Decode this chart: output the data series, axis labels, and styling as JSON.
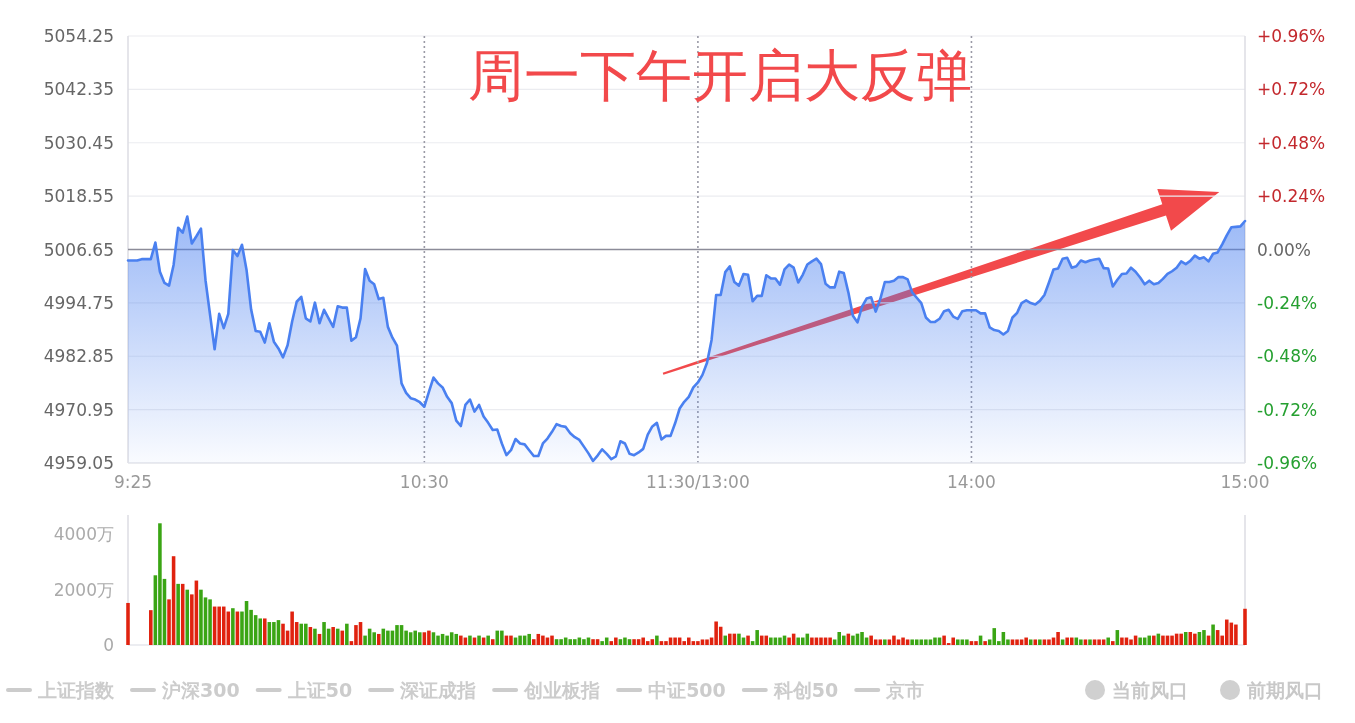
{
  "chart_data": [
    {
      "type": "area",
      "title": "周一下午开启大反弹",
      "categories": [
        "9:25",
        null,
        null,
        null,
        null,
        null,
        null,
        null,
        null,
        null,
        null,
        null,
        null,
        null,
        null,
        null,
        null,
        null,
        null,
        null,
        null,
        null,
        null,
        null,
        null,
        null,
        null,
        null,
        null,
        null,
        null,
        null,
        null,
        null,
        null,
        null,
        null,
        null,
        null,
        null,
        null,
        null,
        null,
        null,
        null,
        null,
        null,
        null,
        null,
        null,
        null,
        null,
        null,
        null,
        null,
        null,
        null,
        null,
        null,
        null,
        null,
        null,
        null,
        null,
        null,
        "10:30",
        null,
        null,
        null,
        null,
        null,
        null,
        null,
        null,
        null,
        null,
        null,
        null,
        null,
        null,
        null,
        null,
        null,
        null,
        null,
        null,
        null,
        null,
        null,
        null,
        null,
        null,
        null,
        null,
        null,
        null,
        null,
        null,
        null,
        null,
        null,
        null,
        null,
        null,
        null,
        null,
        null,
        null,
        null,
        null,
        null,
        null,
        null,
        null,
        null,
        null,
        null,
        null,
        null,
        null,
        null,
        null,
        null,
        null,
        null,
        "11:30/13:00",
        null,
        null,
        null,
        null,
        null,
        null,
        null,
        null,
        null,
        null,
        null,
        null,
        null,
        null,
        null,
        null,
        null,
        null,
        null,
        null,
        null,
        null,
        null,
        null,
        null,
        null,
        null,
        null,
        null,
        null,
        null,
        null,
        null,
        null,
        null,
        null,
        null,
        null,
        null,
        null,
        null,
        null,
        null,
        null,
        null,
        null,
        null,
        null,
        null,
        null,
        null,
        null,
        null,
        null,
        null,
        null,
        null,
        null,
        null,
        "14:00",
        null,
        null,
        null,
        null,
        null,
        null,
        null,
        null,
        null,
        null,
        null,
        null,
        null,
        null,
        null,
        null,
        null,
        null,
        null,
        null,
        null,
        null,
        null,
        null,
        null,
        null,
        null,
        null,
        null,
        null,
        null,
        null,
        null,
        null,
        null,
        null,
        null,
        null,
        null,
        null,
        null,
        null,
        null,
        null,
        null,
        null,
        null,
        null,
        null,
        null,
        null,
        null,
        null,
        null,
        null,
        null,
        null,
        null,
        null,
        "15:00"
      ],
      "ylim": [
        4959.05,
        5054.25
      ],
      "yticks": [
        4959.05,
        4970.95,
        4982.85,
        4994.75,
        5006.65,
        5018.55,
        5030.45,
        5042.35,
        5054.25
      ],
      "y2lim": [
        -0.96,
        0.96
      ],
      "y2ticks": [
        {
          "value": -0.96,
          "label": "-0.96%"
        },
        {
          "value": -0.72,
          "label": "-0.72%"
        },
        {
          "value": -0.48,
          "label": "-0.48%"
        },
        {
          "value": -0.24,
          "label": "-0.24%"
        },
        {
          "value": 0,
          "label": "0.00%"
        },
        {
          "value": 0.24,
          "label": "+0.24%"
        },
        {
          "value": 0.48,
          "label": "+0.48%"
        },
        {
          "value": 0.72,
          "label": "+0.72%"
        },
        {
          "value": 0.96,
          "label": "+0.96%"
        }
      ],
      "grid": true,
      "ref_lines": [
        {
          "axis": "y",
          "value": 5006.65,
          "color": "#8c8c99"
        }
      ],
      "annotations": [
        "上证指数",
        "沪深300",
        "上证50",
        "深证成指",
        "创业板指",
        "中证500",
        "科创50",
        "京市",
        "当前风口",
        "前期风口"
      ],
      "series": [
        {
          "color": "#4a80f0",
          "values": [
            5004.2,
            5004.2,
            5004.2,
            5004.5,
            5004.5,
            5004.5,
            5008.2,
            5001.7,
            4999.2,
            4998.6,
            5003.2,
            5011.5,
            5010.4,
            5014.0,
            5008.0,
            5009.6,
            5011.3,
            4999.8,
            4992.1,
            4984.4,
            4992.3,
            4989.1,
            4992.3,
            5006.5,
            5005.2,
            5007.7,
            5002.1,
            4993.3,
            4988.5,
            4988.3,
            4985.9,
            4990.2,
            4986.1,
            4984.6,
            4982.6,
            4985.3,
            4990.6,
            4995.0,
            4996.1,
            4991.3,
            4990.6,
            4994.8,
            4990.2,
            4993.2,
            4991.3,
            4989.4,
            4994.0,
            4993.7,
            4993.7,
            4986.3,
            4987.1,
            4991.3,
            5002.3,
            4999.7,
            4998.9,
            4995.6,
            4995.9,
            4989.4,
            4987.0,
            4985.2,
            4976.8,
            4974.7,
            4973.5,
            4973.2,
            4972.6,
            4971.6,
            4974.9,
            4978.1,
            4976.8,
            4975.9,
            4973.8,
            4972.4,
            4968.5,
            4967.3,
            4972.0,
            4973.2,
            4970.5,
            4972.0,
            4969.4,
            4968.0,
            4966.4,
            4966.5,
            4963.4,
            4960.8,
            4961.9,
            4964.4,
            4963.4,
            4963.2,
            4961.9,
            4960.6,
            4960.6,
            4963.4,
            4964.5,
            4966.0,
            4967.7,
            4967.3,
            4967.1,
            4965.7,
            4964.8,
            4964.2,
            4962.7,
            4961.2,
            4959.5,
            4960.7,
            4962.1,
            4961.1,
            4959.9,
            4960.5,
            4963.9,
            4963.4,
            4961.1,
            4960.8,
            4961.4,
            4962.2,
            4965.4,
            4967.2,
            4968.0,
            4964.3,
            4965.1,
            4965.1,
            4967.9,
            4971.2,
            4972.7,
            4973.8,
            4975.9,
            4977.0,
            4978.7,
            4981.4,
            4986.5,
            4996.5,
            4996.5,
            5001.6,
            5002.9,
            4999.4,
            4998.6,
            5001.2,
            5001.0,
            4995.1,
            4996.3,
            4996.3,
            5000.9,
            5000.2,
            5000.2,
            4998.8,
            5002.2,
            5003.3,
            5002.6,
            4999.3,
            5001.0,
            5003.3,
            5004.0,
            5004.6,
            5003.4,
            4999.0,
            4998.2,
            4998.2,
            5001.7,
            5001.4,
            4997.1,
            4991.9,
            4990.4,
            4993.9,
            4995.7,
            4996.0,
            4992.8,
            4995.6,
            4999.4,
            4999.4,
            4999.7,
            5000.5,
            5000.5,
            5000.0,
            4997.1,
            4995.9,
            4994.7,
            4991.5,
            4990.5,
            4990.5,
            4991.2,
            4992.9,
            4993.2,
            4991.7,
            4991.2,
            4992.9,
            4993.1,
            4993.1,
            4993.1,
            4992.4,
            4992.4,
            4989.3,
            4988.7,
            4988.5,
            4987.7,
            4988.5,
            4991.5,
            4992.5,
            4994.7,
            4995.3,
            4994.7,
            4994.4,
            4995.2,
            4996.5,
            4999.3,
            5002.2,
            5002.4,
            5004.6,
            5004.8,
            5002.6,
            5002.9,
            5004.2,
            5003.8,
            5004.2,
            5004.4,
            5004.6,
            5002.5,
            5002.4,
            4998.4,
            4999.9,
            5001.2,
            5001.3,
            5002.6,
            5001.7,
            5000.4,
            4998.9,
            4999.7,
            4998.9,
            4999.2,
            5000.1,
            5001.2,
            5001.8,
            5002.6,
            5004.0,
            5003.4,
            5004.1,
            5005.3,
            5004.6,
            5004.9,
            5004.0,
            5005.7,
            5006.0,
            5007.8,
            5009.8,
            5011.6,
            5011.7,
            5011.8,
            5013.0
          ]
        }
      ]
    },
    {
      "type": "bar",
      "ylim": [
        0,
        4700
      ],
      "yticks": [
        0,
        {
          "value": 2000,
          "label": "2000万"
        },
        {
          "value": 4000,
          "label": "4000万"
        }
      ],
      "tick_labels": "y",
      "categories": [
        null,
        null,
        null,
        null,
        null,
        null,
        null,
        null,
        null,
        null,
        null,
        null,
        null,
        null,
        null,
        null,
        null,
        null,
        null,
        null,
        null,
        null,
        null,
        null,
        null,
        null,
        null,
        null,
        null,
        null,
        null,
        null,
        null,
        null,
        null,
        null,
        null,
        null,
        null,
        null,
        null,
        null,
        null,
        null,
        null,
        null,
        null,
        null,
        null,
        null,
        null,
        null,
        null,
        null,
        null,
        null,
        null,
        null,
        null,
        null,
        null,
        null,
        null,
        null,
        null,
        null,
        null,
        null,
        null,
        null,
        null,
        null,
        null,
        null,
        null,
        null,
        null,
        null,
        null,
        null,
        null,
        null,
        null,
        null,
        null,
        null,
        null,
        null,
        null,
        null,
        null,
        null,
        null,
        null,
        null,
        null,
        null,
        null,
        null,
        null,
        null,
        null,
        null,
        null,
        null,
        null,
        null,
        null,
        null,
        null,
        null,
        null,
        null,
        null,
        null,
        null,
        null,
        null,
        null,
        null,
        null,
        null,
        null,
        null,
        null,
        null,
        null,
        null,
        null,
        null,
        null,
        null,
        null,
        null,
        null,
        null,
        null,
        null,
        null,
        null,
        null,
        null,
        null,
        null,
        null,
        null,
        null,
        null,
        null,
        null,
        null,
        null,
        null,
        null,
        null,
        null,
        null,
        null,
        null,
        null,
        null,
        null,
        null,
        null,
        null,
        null,
        null,
        null,
        null,
        null,
        null,
        null,
        null,
        null,
        null,
        null,
        null,
        null,
        null,
        null,
        null,
        null,
        null,
        null,
        null,
        null,
        null,
        null,
        null,
        null,
        null,
        null,
        null,
        null,
        null,
        null,
        null,
        null,
        null,
        null,
        null,
        null,
        null,
        null,
        null,
        null,
        null,
        null,
        null,
        null,
        null,
        null,
        null,
        null,
        null,
        null,
        null,
        null,
        null,
        null,
        null,
        null,
        null,
        null,
        null,
        null,
        null,
        null,
        null,
        null,
        null,
        null,
        null,
        null,
        null,
        null,
        null,
        null,
        null,
        null,
        null,
        null,
        null,
        null,
        null,
        null
      ],
      "values": [
        1520,
        null,
        null,
        null,
        null,
        1260,
        2520,
        4400,
        2390,
        1650,
        3210,
        2210,
        2210,
        2000,
        1830,
        2330,
        2000,
        1720,
        1650,
        1390,
        1390,
        1390,
        1210,
        1330,
        1210,
        1210,
        1590,
        1270,
        1080,
        960,
        960,
        830,
        830,
        900,
        770,
        520,
        1210,
        830,
        770,
        770,
        650,
        590,
        400,
        830,
        590,
        650,
        590,
        520,
        770,
        140,
        720,
        830,
        340,
        590,
        460,
        400,
        590,
        520,
        520,
        720,
        720,
        520,
        460,
        520,
        460,
        460,
        520,
        460,
        340,
        400,
        340,
        460,
        400,
        340,
        270,
        340,
        270,
        340,
        270,
        340,
        210,
        520,
        520,
        340,
        340,
        270,
        340,
        340,
        400,
        210,
        400,
        340,
        270,
        340,
        210,
        210,
        270,
        210,
        210,
        270,
        210,
        270,
        210,
        210,
        140,
        270,
        140,
        270,
        210,
        270,
        210,
        210,
        210,
        270,
        140,
        210,
        340,
        140,
        140,
        270,
        270,
        270,
        140,
        270,
        140,
        140,
        200,
        200,
        270,
        850,
        660,
        340,
        410,
        410,
        410,
        270,
        340,
        140,
        540,
        340,
        340,
        270,
        270,
        270,
        340,
        270,
        410,
        270,
        270,
        410,
        270,
        270,
        270,
        270,
        270,
        200,
        470,
        340,
        410,
        340,
        410,
        470,
        270,
        340,
        200,
        200,
        200,
        200,
        340,
        200,
        270,
        200,
        200,
        200,
        200,
        200,
        200,
        270,
        270,
        340,
        70,
        270,
        200,
        200,
        200,
        140,
        140,
        340,
        140,
        200,
        610,
        140,
        470,
        200,
        200,
        200,
        200,
        270,
        200,
        200,
        200,
        200,
        200,
        270,
        470,
        200,
        270,
        270,
        270,
        200,
        200,
        200,
        200,
        200,
        200,
        270,
        140,
        540,
        270,
        270,
        200,
        340,
        270,
        270,
        340,
        340,
        410,
        340,
        340,
        340,
        410,
        410,
        470,
        470,
        410,
        470,
        540,
        340,
        740,
        540,
        340,
        920,
        810,
        740,
        null,
        1310
      ],
      "colors": [
        "#e0220f",
        null,
        null,
        null,
        null,
        "#e0220f",
        "#3aa514",
        "#3aa514",
        "#3aa514",
        "#e0220f",
        "#e0220f",
        "#3aa514",
        "#e0220f",
        "#3aa514",
        "#e0220f",
        "#e0220f",
        "#3aa514",
        "#3aa514",
        "#3aa514",
        "#e0220f",
        "#e0220f",
        "#e0220f",
        "#e0220f",
        "#3aa514",
        "#e0220f",
        "#3aa514",
        "#3aa514",
        "#3aa514",
        "#3aa514",
        "#3aa514",
        "#e0220f",
        "#3aa514",
        "#3aa514",
        "#3aa514",
        "#e0220f",
        "#e0220f",
        "#e0220f",
        "#e0220f",
        "#3aa514",
        "#3aa514",
        "#e0220f",
        "#3aa514",
        "#e0220f",
        "#3aa514",
        "#3aa514",
        "#e0220f",
        "#3aa514",
        "#e0220f",
        "#3aa514",
        "#e0220f",
        "#e0220f",
        "#e0220f",
        "#3aa514",
        "#3aa514",
        "#3aa514",
        "#e0220f",
        "#3aa514",
        "#3aa514",
        "#3aa514",
        "#3aa514",
        "#3aa514",
        "#3aa514",
        "#3aa514",
        "#3aa514",
        "#3aa514",
        "#e0220f",
        "#e0220f",
        "#3aa514",
        "#3aa514",
        "#3aa514",
        "#3aa514",
        "#3aa514",
        "#3aa514",
        "#e0220f",
        "#e0220f",
        "#3aa514",
        "#e0220f",
        "#3aa514",
        "#e0220f",
        "#3aa514",
        "#e0220f",
        "#3aa514",
        "#3aa514",
        "#e0220f",
        "#e0220f",
        "#3aa514",
        "#3aa514",
        "#3aa514",
        "#3aa514",
        "#e0220f",
        "#e0220f",
        "#e0220f",
        "#e0220f",
        "#e0220f",
        "#3aa514",
        "#3aa514",
        "#3aa514",
        "#3aa514",
        "#3aa514",
        "#3aa514",
        "#3aa514",
        "#3aa514",
        "#e0220f",
        "#e0220f",
        "#3aa514",
        "#3aa514",
        "#e0220f",
        "#e0220f",
        "#3aa514",
        "#3aa514",
        "#3aa514",
        "#e0220f",
        "#e0220f",
        "#e0220f",
        "#e0220f",
        "#e0220f",
        "#3aa514",
        "#e0220f",
        "#e0220f",
        "#e0220f",
        "#e0220f",
        "#e0220f",
        "#e0220f",
        "#e0220f",
        "#e0220f",
        "#e0220f",
        "#e0220f",
        "#e0220f",
        "#e0220f",
        "#e0220f",
        "#e0220f",
        "#3aa514",
        "#e0220f",
        "#e0220f",
        "#3aa514",
        "#3aa514",
        "#e0220f",
        "#3aa514",
        "#3aa514",
        "#e0220f",
        "#e0220f",
        "#3aa514",
        "#3aa514",
        "#3aa514",
        "#3aa514",
        "#e0220f",
        "#e0220f",
        "#3aa514",
        "#3aa514",
        "#3aa514",
        "#e0220f",
        "#e0220f",
        "#e0220f",
        "#e0220f",
        "#e0220f",
        "#3aa514",
        "#3aa514",
        "#3aa514",
        "#e0220f",
        "#3aa514",
        "#3aa514",
        "#3aa514",
        "#3aa514",
        "#e0220f",
        "#e0220f",
        "#e0220f",
        "#3aa514",
        "#e0220f",
        "#e0220f",
        "#e0220f",
        "#e0220f",
        "#e0220f",
        "#3aa514",
        "#3aa514",
        "#3aa514",
        "#3aa514",
        "#3aa514",
        "#3aa514",
        "#3aa514",
        "#e0220f",
        "#e0220f",
        "#e0220f",
        "#3aa514",
        "#3aa514",
        "#3aa514",
        "#e0220f",
        "#e0220f",
        "#3aa514",
        "#e0220f",
        "#3aa514",
        "#3aa514",
        "#3aa514",
        "#3aa514",
        "#3aa514",
        "#e0220f",
        "#e0220f",
        "#e0220f",
        "#e0220f",
        "#3aa514",
        "#e0220f",
        "#3aa514",
        "#e0220f",
        "#e0220f",
        "#e0220f",
        "#e0220f",
        "#3aa514",
        "#e0220f",
        "#e0220f",
        "#3aa514",
        "#3aa514",
        "#e0220f",
        "#3aa514",
        "#e0220f",
        "#e0220f",
        "#e0220f",
        "#3aa514",
        "#e0220f",
        "#3aa514",
        "#e0220f",
        "#e0220f",
        "#e0220f",
        "#e0220f",
        "#3aa514",
        "#3aa514",
        "#3aa514",
        "#e0220f",
        "#3aa514",
        "#e0220f",
        "#e0220f",
        "#e0220f",
        "#e0220f",
        "#e0220f",
        "#3aa514",
        "#e0220f",
        "#e0220f",
        "#3aa514",
        "#3aa514",
        "#e0220f",
        "#3aa514",
        "#e0220f",
        "#e0220f",
        "#e0220f",
        "#e0220f",
        "#e0220f",
        null,
        "#e0220f"
      ]
    }
  ]
}
